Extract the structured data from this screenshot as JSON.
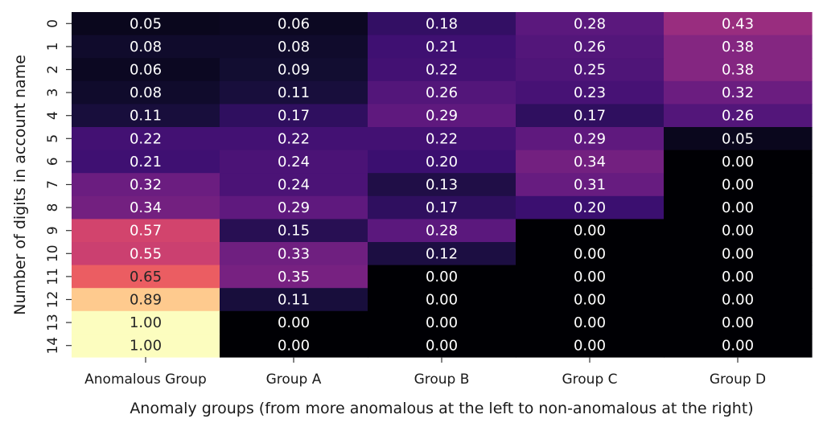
{
  "chart_data": {
    "type": "heatmap",
    "title": "",
    "xlabel": "Anomaly groups (from more anomalous at the left to non-anomalous at the right)",
    "ylabel": "Number of digits in account name",
    "x_categories": [
      "Anomalous Group",
      "Group A",
      "Group B",
      "Group C",
      "Group D"
    ],
    "y_categories": [
      "0",
      "1",
      "2",
      "3",
      "4",
      "5",
      "6",
      "7",
      "8",
      "9",
      "10",
      "11",
      "12",
      "13",
      "14"
    ],
    "values": [
      [
        0.05,
        0.06,
        0.18,
        0.28,
        0.43
      ],
      [
        0.08,
        0.08,
        0.21,
        0.26,
        0.38
      ],
      [
        0.06,
        0.09,
        0.22,
        0.25,
        0.38
      ],
      [
        0.08,
        0.11,
        0.26,
        0.23,
        0.32
      ],
      [
        0.11,
        0.17,
        0.29,
        0.17,
        0.26
      ],
      [
        0.22,
        0.22,
        0.22,
        0.29,
        0.05
      ],
      [
        0.21,
        0.24,
        0.2,
        0.34,
        0.0
      ],
      [
        0.32,
        0.24,
        0.13,
        0.31,
        0.0
      ],
      [
        0.34,
        0.29,
        0.17,
        0.2,
        0.0
      ],
      [
        0.57,
        0.15,
        0.28,
        0.0,
        0.0
      ],
      [
        0.55,
        0.33,
        0.12,
        0.0,
        0.0
      ],
      [
        0.65,
        0.35,
        0.0,
        0.0,
        0.0
      ],
      [
        0.89,
        0.11,
        0.0,
        0.0,
        0.0
      ],
      [
        1.0,
        0.0,
        0.0,
        0.0,
        0.0
      ],
      [
        1.0,
        0.0,
        0.0,
        0.0,
        0.0
      ]
    ],
    "value_range": [
      0,
      1
    ],
    "colormap": "magma",
    "annotation_format": "0.00",
    "colorbar": false,
    "grid": false
  }
}
